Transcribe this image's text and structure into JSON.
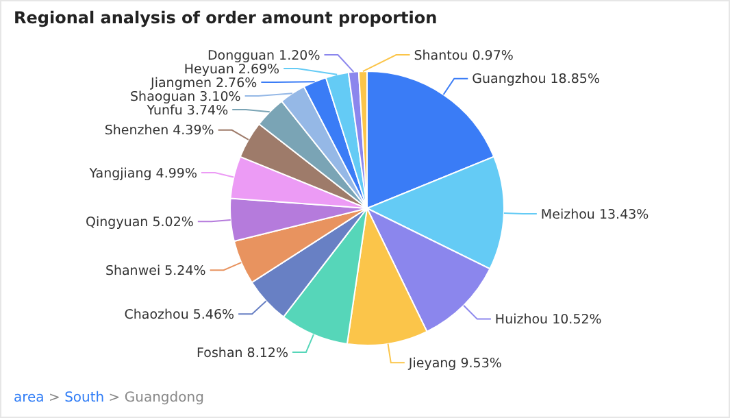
{
  "chart_data": {
    "type": "pie",
    "title": "Regional analysis of order amount proportion",
    "categories": [
      "Guangzhou",
      "Meizhou",
      "Huizhou",
      "Jieyang",
      "Foshan",
      "Chaozhou",
      "Shanwei",
      "Qingyuan",
      "Yangjiang",
      "Shenzhen",
      "Yunfu",
      "Shaoguan",
      "Jiangmen",
      "Heyuan",
      "Dongguan",
      "Shantou"
    ],
    "values": [
      18.85,
      13.43,
      10.52,
      9.53,
      8.12,
      5.46,
      5.24,
      5.02,
      4.99,
      4.39,
      3.74,
      3.1,
      2.76,
      2.69,
      1.2,
      0.97
    ],
    "value_labels": [
      "18.85%",
      "13.43%",
      "10.52%",
      "9.53%",
      "8.12%",
      "5.46%",
      "5.24%",
      "5.02%",
      "4.99%",
      "4.39%",
      "3.74%",
      "3.10%",
      "2.76%",
      "2.69%",
      "1.20%",
      "0.97%"
    ],
    "colors": [
      "#3a7cf6",
      "#64cbf5",
      "#8b86ed",
      "#fbc54a",
      "#56d6b9",
      "#6880c4",
      "#e8935f",
      "#b57bdc",
      "#ec9bf5",
      "#9e7b6a",
      "#7aa4b5",
      "#95b8e6",
      "#3a7cf6",
      "#64cbf5",
      "#8b86ed",
      "#fbc54a"
    ],
    "annotations": [
      "area > South > Guangdong"
    ]
  }
}
